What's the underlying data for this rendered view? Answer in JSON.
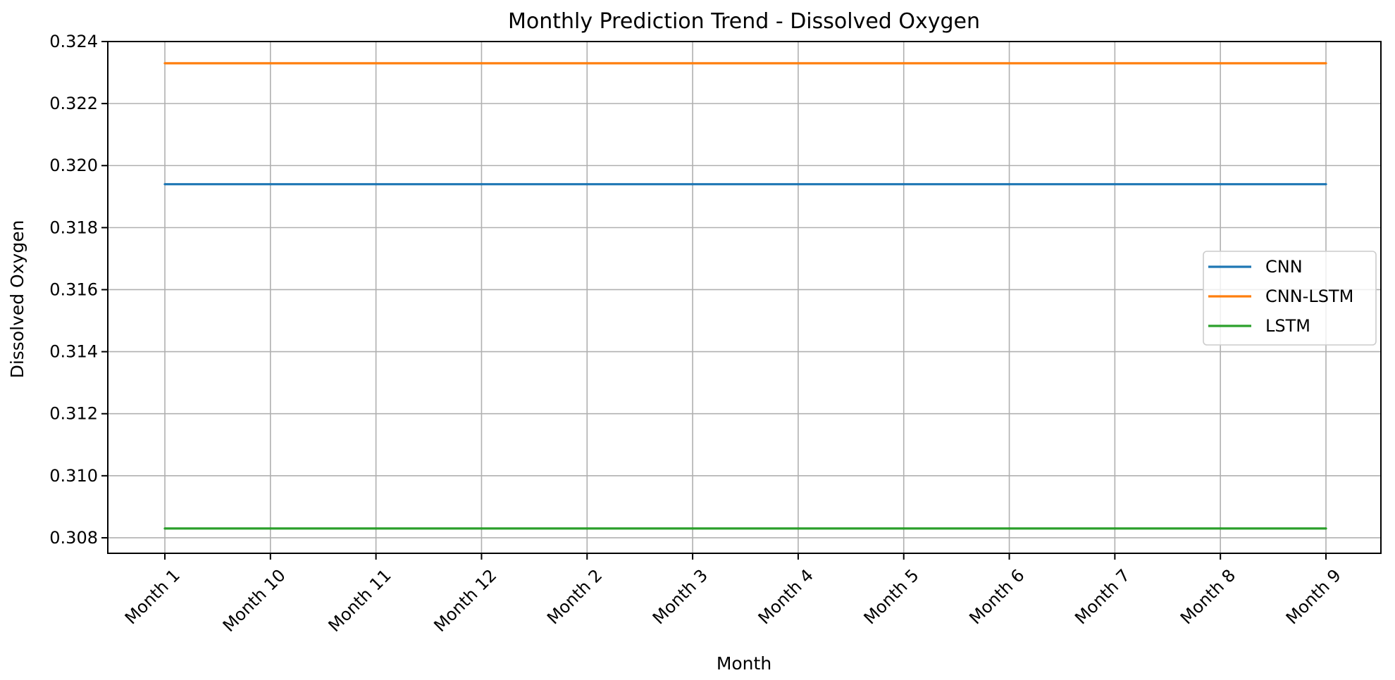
{
  "chart_data": {
    "type": "line",
    "title": "Monthly Prediction Trend - Dissolved Oxygen",
    "xlabel": "Month",
    "ylabel": "Dissolved Oxygen",
    "categories": [
      "Month 1",
      "Month 10",
      "Month 11",
      "Month 12",
      "Month 2",
      "Month 3",
      "Month 4",
      "Month 5",
      "Month 6",
      "Month 7",
      "Month 8",
      "Month 9"
    ],
    "ylim": [
      0.3075,
      0.324
    ],
    "yticks": [
      0.308,
      0.31,
      0.312,
      0.314,
      0.316,
      0.318,
      0.32,
      0.322,
      0.324
    ],
    "ytick_labels": [
      "0.308",
      "0.310",
      "0.312",
      "0.314",
      "0.316",
      "0.318",
      "0.320",
      "0.322",
      "0.324"
    ],
    "grid": true,
    "legend_position": "center-right",
    "series": [
      {
        "name": "CNN",
        "color": "#1f77b4",
        "values": [
          0.3194,
          0.3194,
          0.3194,
          0.3194,
          0.3194,
          0.3194,
          0.3194,
          0.3194,
          0.3194,
          0.3194,
          0.3194,
          0.3194
        ]
      },
      {
        "name": "CNN-LSTM",
        "color": "#ff7f0e",
        "values": [
          0.3233,
          0.3233,
          0.3233,
          0.3233,
          0.3233,
          0.3233,
          0.3233,
          0.3233,
          0.3233,
          0.3233,
          0.3233,
          0.3233
        ]
      },
      {
        "name": "LSTM",
        "color": "#2ca02c",
        "values": [
          0.3083,
          0.3083,
          0.3083,
          0.3083,
          0.3083,
          0.3083,
          0.3083,
          0.3083,
          0.3083,
          0.3083,
          0.3083,
          0.3083
        ]
      }
    ]
  }
}
